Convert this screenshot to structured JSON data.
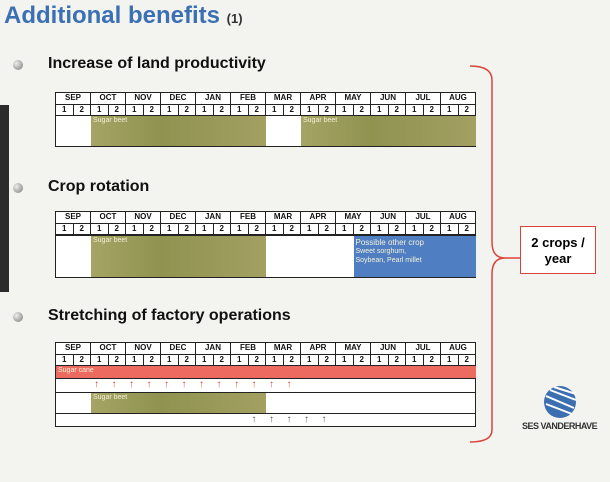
{
  "title": "Additional benefits",
  "title_note": "(1)",
  "months": [
    "SEP",
    "OCT",
    "NOV",
    "DEC",
    "JAN",
    "FEB",
    "MAR",
    "APR",
    "MAY",
    "JUN",
    "JUL",
    "AUG"
  ],
  "halves": [
    "1",
    "2"
  ],
  "sections": [
    {
      "heading": "Increase of land productivity",
      "bars": [
        {
          "label": "Sugar beet"
        },
        {
          "label": "Sugar beet"
        }
      ]
    },
    {
      "heading": "Crop rotation",
      "bars": [
        {
          "label": "Sugar beet"
        },
        {
          "label": [
            "Possible other crop",
            "Sweet sorghum,",
            "Soybean, Pearl millet"
          ]
        }
      ]
    },
    {
      "heading": "Stretching of factory operations",
      "bars": [
        {
          "label": "Sugar cane"
        },
        {
          "label": "Sugar beet"
        }
      ]
    }
  ],
  "callout": [
    "2 crops /",
    "year"
  ],
  "logo": "SES VANDERHAVE"
}
